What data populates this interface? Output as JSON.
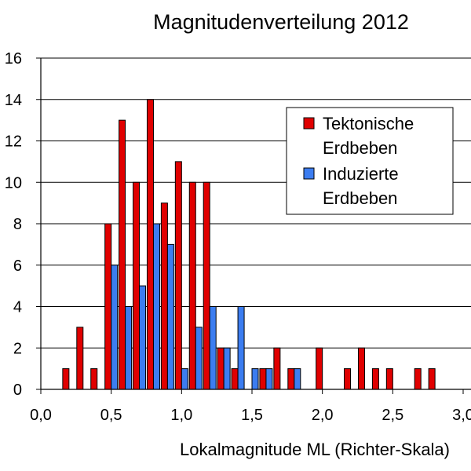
{
  "chart_data": {
    "type": "bar",
    "title": "Magnitudenverteilung 2012",
    "xlabel": "Lokalmagnitude ML (Richter-Skala)",
    "ylabel": "",
    "xlim": [
      0,
      3.0
    ],
    "ylim": [
      0,
      16
    ],
    "x_ticks": [
      0,
      0.5,
      1.0,
      1.5,
      2.0,
      2.5,
      3.0
    ],
    "x_tick_labels": [
      "0,0",
      "0,5",
      "1,0",
      "1,5",
      "2,0",
      "2,5",
      "3,0"
    ],
    "y_ticks": [
      0,
      2,
      4,
      6,
      8,
      10,
      12,
      14,
      16
    ],
    "y_tick_labels": [
      "0",
      "2",
      "4",
      "6",
      "8",
      "10",
      "12",
      "14",
      "16"
    ],
    "grid": "horizontal",
    "legend_position": "top-right",
    "x": [
      0.0,
      0.1,
      0.2,
      0.3,
      0.4,
      0.5,
      0.6,
      0.7,
      0.8,
      0.9,
      1.0,
      1.1,
      1.2,
      1.3,
      1.4,
      1.5,
      1.6,
      1.7,
      1.8,
      1.9,
      2.0,
      2.1,
      2.2,
      2.3,
      2.4,
      2.5,
      2.6,
      2.7,
      2.8,
      2.9
    ],
    "series": [
      {
        "name": "Tektonische\nErdbeben",
        "color": "#e00000",
        "values": [
          0,
          0,
          1,
          3,
          1,
          8,
          13,
          10,
          14,
          9,
          11,
          10,
          10,
          2,
          1,
          0,
          1,
          2,
          1,
          0,
          2,
          0,
          1,
          2,
          1,
          1,
          0,
          1,
          1,
          0
        ]
      },
      {
        "name": "Induzierte\nErdbeben",
        "color": "#3c7df0",
        "values": [
          0,
          0,
          0,
          0,
          0,
          6,
          4,
          5,
          8,
          7,
          1,
          3,
          4,
          2,
          4,
          1,
          1,
          0,
          1,
          0,
          0,
          0,
          0,
          0,
          0,
          0,
          0,
          0,
          0,
          0
        ]
      }
    ]
  }
}
